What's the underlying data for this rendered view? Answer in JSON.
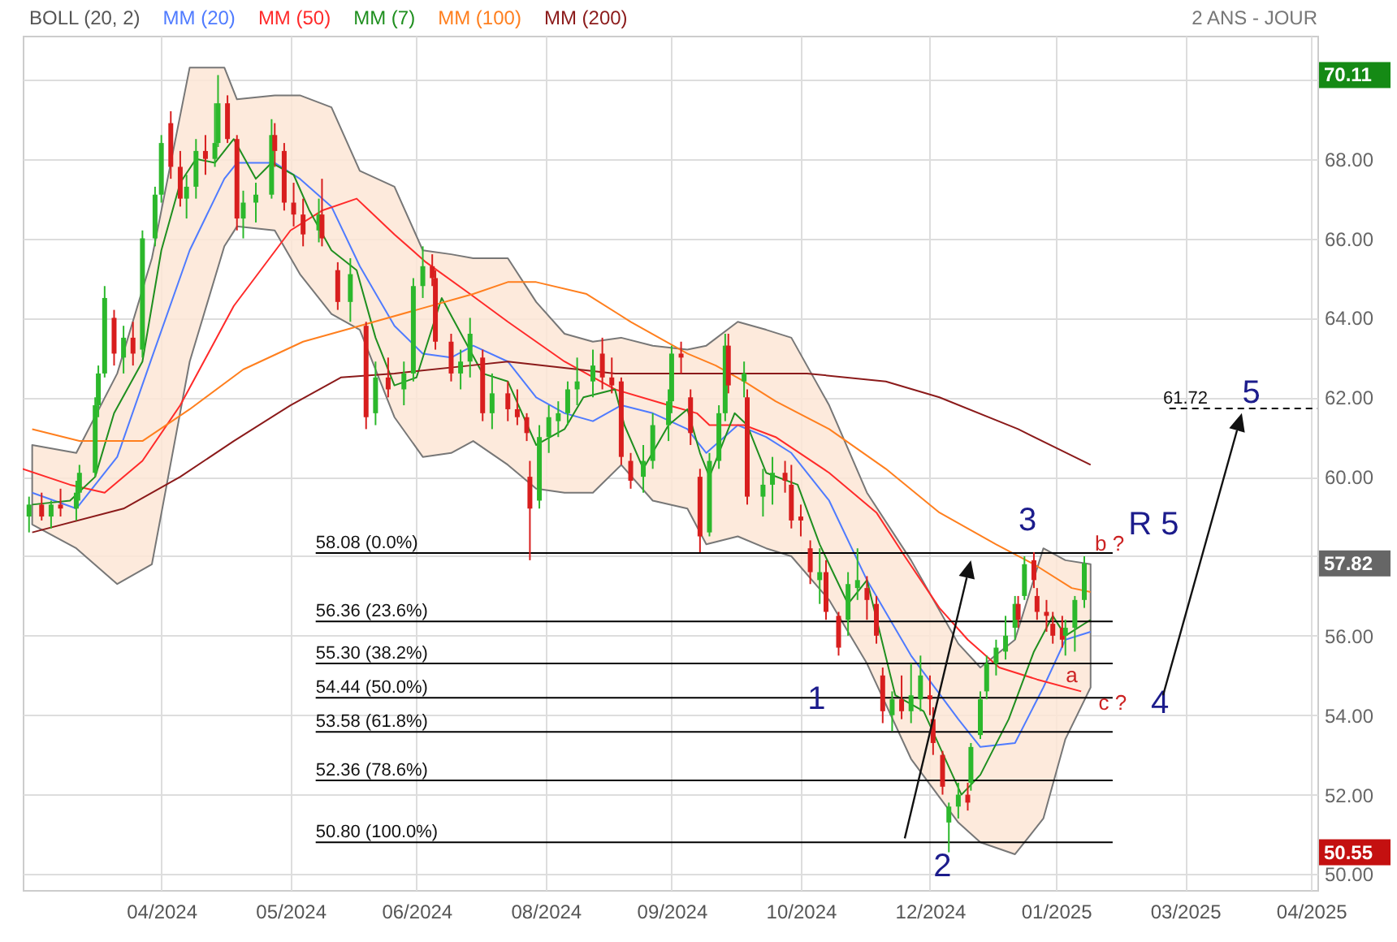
{
  "chart_data": {
    "type": "candlestick",
    "subtitle": "2 ANS - JOUR",
    "legend_title": "BOLL (20, 2)",
    "legend": "top left",
    "grid": true,
    "marker": "none",
    "xlim": [
      "2024-02-26",
      "2025-04-12"
    ],
    "xticks": [
      {
        "value": "2024-04-10",
        "label": "04/2024"
      },
      {
        "value": "2024-05-21",
        "label": "05/2024"
      },
      {
        "value": "2024-06-30",
        "label": "06/2024"
      },
      {
        "value": "2024-08-10",
        "label": "08/2024"
      },
      {
        "value": "2024-09-19",
        "label": "09/2024"
      },
      {
        "value": "2024-10-30",
        "label": "10/2024"
      },
      {
        "value": "2024-12-10",
        "label": "12/2024"
      },
      {
        "value": "2025-01-19",
        "label": "01/2025"
      },
      {
        "value": "2025-03-01",
        "label": "03/2025"
      },
      {
        "value": "2025-04-10",
        "label": "04/2025"
      }
    ],
    "ylim": [
      49.6,
      71.1
    ],
    "yticks": [
      {
        "value": 50,
        "label": "50.00"
      },
      {
        "value": 52,
        "label": "52.00"
      },
      {
        "value": 54,
        "label": "54.00"
      },
      {
        "value": 56,
        "label": "56.00"
      },
      {
        "value": 58,
        "label": null
      },
      {
        "value": 60,
        "label": "60.00"
      },
      {
        "value": 62,
        "label": "62.00"
      },
      {
        "value": 64,
        "label": "64.00"
      },
      {
        "value": 66,
        "label": "66.00"
      },
      {
        "value": 68,
        "label": "68.00"
      },
      {
        "value": 70,
        "label": null
      }
    ],
    "x": [
      "2024-02-28",
      "2024-03-03",
      "2024-03-06",
      "2024-03-09",
      "2024-03-14",
      "2024-03-15",
      "2024-03-20",
      "2024-03-21",
      "2024-03-23",
      "2024-03-26",
      "2024-03-29",
      "2024-04-01",
      "2024-04-04",
      "2024-04-08",
      "2024-04-10",
      "2024-04-13",
      "2024-04-16",
      "2024-04-18",
      "2024-04-21",
      "2024-04-24",
      "2024-04-27",
      "2024-04-28",
      "2024-05-01",
      "2024-05-04",
      "2024-05-06",
      "2024-05-10",
      "2024-05-15",
      "2024-05-16",
      "2024-05-19",
      "2024-05-22",
      "2024-05-25",
      "2024-05-30",
      "2024-05-31",
      "2024-06-05",
      "2024-06-09",
      "2024-06-14",
      "2024-06-17",
      "2024-06-21",
      "2024-06-26",
      "2024-06-29",
      "2024-07-02",
      "2024-07-05",
      "2024-07-06",
      "2024-07-11",
      "2024-07-14",
      "2024-07-17",
      "2024-07-21",
      "2024-07-24",
      "2024-07-29",
      "2024-08-01",
      "2024-08-04",
      "2024-08-05",
      "2024-08-08",
      "2024-08-11",
      "2024-08-14",
      "2024-08-17",
      "2024-08-20",
      "2024-08-25",
      "2024-08-28",
      "2024-08-31",
      "2024-09-03",
      "2024-09-06",
      "2024-09-10",
      "2024-09-13",
      "2024-09-18",
      "2024-09-19",
      "2024-09-22",
      "2024-09-25",
      "2024-09-28",
      "2024-10-01",
      "2024-10-04",
      "2024-10-06",
      "2024-10-07",
      "2024-10-12",
      "2024-10-13",
      "2024-10-18",
      "2024-10-21",
      "2024-10-25",
      "2024-10-27",
      "2024-10-30",
      "2024-11-02",
      "2024-11-05",
      "2024-11-07",
      "2024-11-11",
      "2024-11-14",
      "2024-11-17",
      "2024-11-20",
      "2024-11-23",
      "2024-11-25",
      "2024-11-28",
      "2024-12-01",
      "2024-12-04",
      "2024-12-07",
      "2024-12-10",
      "2024-12-11",
      "2024-12-14",
      "2024-12-16",
      "2024-12-19",
      "2024-12-22",
      "2024-12-23",
      "2024-12-26",
      "2024-12-28",
      "2024-12-31",
      "2025-01-03",
      "2025-01-06",
      "2025-01-07",
      "2025-01-09",
      "2025-01-12",
      "2025-01-13",
      "2025-01-16",
      "2025-01-18",
      "2025-01-21",
      "2025-01-22",
      "2025-01-25",
      "2025-01-28"
    ],
    "ohlc": [
      [
        59.0,
        59.5,
        58.6,
        59.3
      ],
      [
        59.3,
        59.6,
        58.9,
        59.0
      ],
      [
        59.0,
        59.4,
        58.7,
        59.3
      ],
      [
        59.3,
        59.7,
        59.0,
        59.2
      ],
      [
        59.2,
        59.9,
        58.9,
        59.6
      ],
      [
        59.6,
        60.3,
        59.4,
        60.1
      ],
      [
        60.1,
        62.0,
        60.0,
        61.8
      ],
      [
        61.8,
        62.8,
        61.5,
        62.6
      ],
      [
        62.6,
        64.8,
        62.5,
        64.5
      ],
      [
        64.0,
        64.2,
        62.8,
        63.1
      ],
      [
        63.0,
        63.8,
        62.6,
        63.5
      ],
      [
        63.5,
        63.9,
        62.8,
        63.1
      ],
      [
        63.2,
        66.2,
        63.0,
        66.0
      ],
      [
        66.0,
        67.3,
        65.8,
        67.1
      ],
      [
        67.1,
        68.6,
        66.9,
        68.4
      ],
      [
        68.9,
        69.2,
        67.5,
        67.8
      ],
      [
        67.8,
        68.2,
        66.8,
        67.0
      ],
      [
        67.0,
        67.6,
        66.5,
        67.3
      ],
      [
        67.3,
        68.5,
        67.0,
        68.2
      ],
      [
        68.2,
        68.6,
        67.6,
        68.0
      ],
      [
        68.0,
        69.4,
        67.8,
        68.4
      ],
      [
        68.4,
        70.11,
        68.3,
        69.4
      ],
      [
        69.4,
        69.6,
        68.4,
        68.5
      ],
      [
        68.5,
        68.6,
        66.2,
        66.5
      ],
      [
        66.5,
        67.2,
        66.0,
        66.9
      ],
      [
        66.9,
        67.4,
        66.4,
        67.1
      ],
      [
        67.1,
        69.0,
        67.0,
        68.6
      ],
      [
        68.6,
        68.9,
        67.8,
        68.2
      ],
      [
        68.2,
        68.4,
        66.7,
        66.9
      ],
      [
        66.9,
        67.4,
        66.3,
        66.6
      ],
      [
        66.6,
        67.0,
        65.8,
        66.1
      ],
      [
        66.2,
        67.0,
        65.9,
        66.6
      ],
      [
        66.6,
        67.5,
        65.8,
        66.0
      ],
      [
        65.2,
        65.4,
        64.2,
        64.4
      ],
      [
        64.4,
        65.5,
        63.9,
        65.1
      ],
      [
        63.8,
        63.9,
        61.2,
        61.5
      ],
      [
        61.6,
        62.9,
        61.3,
        62.5
      ],
      [
        62.5,
        63.0,
        62.0,
        62.2
      ],
      [
        62.2,
        62.9,
        61.8,
        62.6
      ],
      [
        62.6,
        65.0,
        62.4,
        64.8
      ],
      [
        64.8,
        65.8,
        64.5,
        65.3
      ],
      [
        65.3,
        65.6,
        64.8,
        65.0
      ],
      [
        65.0,
        65.2,
        63.2,
        63.4
      ],
      [
        63.4,
        63.6,
        62.4,
        62.6
      ],
      [
        62.6,
        63.2,
        62.2,
        62.9
      ],
      [
        62.9,
        64.0,
        62.5,
        63.6
      ],
      [
        63.0,
        63.2,
        61.4,
        61.6
      ],
      [
        61.6,
        62.6,
        61.2,
        62.1
      ],
      [
        62.1,
        62.4,
        61.4,
        61.7
      ],
      [
        61.7,
        62.2,
        61.3,
        61.5
      ],
      [
        61.5,
        61.6,
        60.9,
        61.1
      ],
      [
        60.0,
        60.4,
        57.9,
        59.2
      ],
      [
        59.4,
        61.3,
        59.2,
        61.0
      ],
      [
        61.0,
        61.8,
        60.6,
        61.5
      ],
      [
        61.4,
        61.9,
        61.0,
        61.6
      ],
      [
        61.6,
        62.4,
        61.3,
        62.2
      ],
      [
        62.2,
        63.0,
        61.8,
        62.4
      ],
      [
        62.4,
        63.2,
        62.0,
        62.8
      ],
      [
        63.1,
        63.5,
        62.2,
        62.5
      ],
      [
        62.5,
        63.0,
        62.1,
        62.3
      ],
      [
        62.4,
        62.5,
        60.3,
        60.5
      ],
      [
        60.4,
        60.6,
        59.7,
        59.9
      ],
      [
        60.0,
        60.8,
        59.6,
        60.4
      ],
      [
        60.4,
        61.6,
        60.2,
        61.3
      ],
      [
        61.3,
        62.2,
        60.9,
        61.9
      ],
      [
        61.9,
        63.3,
        61.6,
        63.1
      ],
      [
        63.1,
        63.4,
        62.6,
        63.0
      ],
      [
        62.0,
        62.2,
        60.8,
        61.1
      ],
      [
        60.0,
        60.2,
        58.1,
        58.5
      ],
      [
        58.6,
        60.6,
        58.5,
        60.4
      ],
      [
        60.4,
        61.8,
        60.2,
        61.6
      ],
      [
        61.6,
        63.6,
        61.4,
        63.3
      ],
      [
        63.3,
        63.6,
        62.1,
        62.3
      ],
      [
        62.4,
        62.9,
        62.0,
        62.6
      ],
      [
        62.0,
        62.2,
        59.3,
        59.5
      ],
      [
        59.5,
        60.2,
        59.0,
        59.8
      ],
      [
        59.8,
        60.5,
        59.3,
        60.1
      ],
      [
        60.1,
        60.4,
        59.6,
        59.9
      ],
      [
        59.8,
        60.3,
        58.7,
        58.9
      ],
      [
        59.0,
        59.3,
        58.5,
        58.9
      ],
      [
        58.2,
        58.4,
        57.3,
        57.6
      ],
      [
        57.4,
        58.2,
        56.8,
        57.6
      ],
      [
        57.6,
        57.9,
        56.4,
        56.6
      ],
      [
        56.5,
        56.6,
        55.5,
        55.7
      ],
      [
        56.4,
        57.6,
        56.0,
        57.3
      ],
      [
        57.2,
        58.2,
        56.9,
        57.4
      ],
      [
        57.2,
        57.5,
        56.4,
        56.9
      ],
      [
        56.8,
        57.0,
        55.8,
        56.0
      ],
      [
        55.0,
        55.2,
        53.8,
        54.1
      ],
      [
        54.0,
        54.6,
        53.6,
        54.4
      ],
      [
        54.4,
        55.0,
        53.9,
        54.1
      ],
      [
        54.1,
        55.3,
        53.8,
        54.5
      ],
      [
        54.4,
        55.5,
        54.1,
        55.0
      ],
      [
        54.5,
        55.0,
        54.0,
        54.4
      ],
      [
        53.9,
        54.2,
        53.0,
        53.3
      ],
      [
        53.0,
        53.1,
        52.0,
        52.2
      ],
      [
        51.3,
        51.8,
        50.55,
        51.7
      ],
      [
        51.7,
        52.3,
        51.4,
        52.0
      ],
      [
        52.0,
        52.3,
        51.6,
        51.8
      ],
      [
        52.3,
        53.3,
        52.1,
        53.2
      ],
      [
        53.5,
        54.6,
        53.4,
        54.4
      ],
      [
        54.6,
        55.5,
        54.4,
        55.3
      ],
      [
        55.3,
        55.9,
        55.0,
        55.7
      ],
      [
        55.6,
        56.5,
        55.4,
        56.0
      ],
      [
        56.2,
        57.0,
        55.9,
        56.8
      ],
      [
        56.8,
        57.0,
        56.2,
        56.4
      ],
      [
        57.0,
        58.0,
        56.9,
        57.8
      ],
      [
        57.9,
        58.1,
        57.2,
        57.4
      ],
      [
        57.0,
        57.2,
        56.4,
        56.6
      ],
      [
        56.6,
        56.9,
        56.1,
        56.5
      ],
      [
        56.3,
        56.6,
        55.8,
        56.0
      ],
      [
        56.2,
        56.5,
        55.7,
        55.9
      ],
      [
        56.0,
        56.4,
        55.5,
        56.2
      ],
      [
        56.2,
        57.0,
        55.6,
        56.9
      ],
      [
        56.9,
        58.0,
        56.7,
        57.82
      ]
    ],
    "series": [
      {
        "name": "MM (20)",
        "type": "line",
        "color": "#4f7bff",
        "x": [
          "2024-02-29",
          "2024-03-14",
          "2024-03-27",
          "2024-04-07",
          "2024-04-19",
          "2024-04-30",
          "2024-05-04",
          "2024-05-16",
          "2024-05-24",
          "2024-06-03",
          "2024-06-12",
          "2024-06-23",
          "2024-07-02",
          "2024-07-11",
          "2024-07-18",
          "2024-07-29",
          "2024-08-07",
          "2024-08-16",
          "2024-08-25",
          "2024-09-03",
          "2024-09-13",
          "2024-09-24",
          "2024-09-30",
          "2024-10-10",
          "2024-10-19",
          "2024-10-27",
          "2024-11-08",
          "2024-11-20",
          "2024-12-04",
          "2024-12-19",
          "2024-12-26",
          "2025-01-06",
          "2025-01-15",
          "2025-01-22",
          "2025-01-30"
        ],
        "values": [
          59.6,
          59.2,
          60.5,
          63.0,
          65.7,
          67.5,
          67.9,
          67.9,
          67.5,
          66.8,
          65.3,
          63.8,
          63.1,
          63.0,
          63.3,
          62.9,
          62.0,
          61.6,
          61.4,
          61.8,
          61.6,
          61.2,
          60.6,
          61.3,
          61.0,
          60.6,
          59.4,
          57.4,
          55.5,
          53.9,
          53.2,
          53.3,
          54.7,
          55.9,
          56.1
        ],
        "upper": [
          60.8,
          60.6,
          62.6,
          65.5,
          70.3,
          70.3,
          69.5,
          69.6,
          69.6,
          69.3,
          67.7,
          67.3,
          65.7,
          65.6,
          65.5,
          65.5,
          64.4,
          63.6,
          63.4,
          63.5,
          63.3,
          63.2,
          63.3,
          63.9,
          63.7,
          63.5,
          61.8,
          59.6,
          57.9,
          55.8,
          55.2,
          55.9,
          58.2,
          57.9,
          57.8
        ],
        "lower": [
          58.8,
          58.2,
          57.3,
          57.8,
          62.9,
          65.8,
          66.3,
          66.2,
          65.1,
          64.1,
          63.7,
          61.5,
          60.5,
          60.6,
          60.9,
          60.3,
          59.7,
          59.6,
          59.6,
          60.3,
          59.4,
          59.2,
          58.3,
          58.5,
          58.2,
          58.0,
          56.9,
          55.3,
          52.9,
          51.3,
          50.8,
          50.5,
          51.4,
          53.4,
          54.7
        ]
      },
      {
        "name": "MM (50)",
        "type": "line",
        "color": "#ff2a2a",
        "x": [
          "2024-02-26",
          "2024-03-12",
          "2024-03-23",
          "2024-04-04",
          "2024-04-16",
          "2024-05-03",
          "2024-05-21",
          "2024-05-31",
          "2024-06-11",
          "2024-06-23",
          "2024-07-03",
          "2024-07-17",
          "2024-07-29",
          "2024-08-16",
          "2024-09-01",
          "2024-09-18",
          "2024-09-27",
          "2024-10-01",
          "2024-10-12",
          "2024-10-22",
          "2024-11-08",
          "2024-11-23",
          "2024-12-02",
          "2024-12-13",
          "2024-12-22",
          "2025-01-01",
          "2025-01-13",
          "2025-01-27"
        ],
        "values": [
          60.2,
          59.8,
          59.6,
          60.4,
          61.8,
          64.3,
          66.2,
          66.7,
          67.0,
          66.1,
          65.4,
          64.6,
          63.9,
          62.9,
          62.2,
          61.8,
          61.6,
          61.3,
          61.3,
          61.0,
          60.1,
          59.1,
          58.0,
          56.7,
          55.9,
          55.2,
          54.9,
          54.6
        ]
      },
      {
        "name": "MM (7)",
        "type": "line",
        "color": "#1f8f1f",
        "x": [
          "2024-02-29",
          "2024-03-12",
          "2024-03-20",
          "2024-03-26",
          "2024-04-04",
          "2024-04-10",
          "2024-04-16",
          "2024-04-21",
          "2024-04-27",
          "2024-05-03",
          "2024-05-10",
          "2024-05-15",
          "2024-05-22",
          "2024-05-27",
          "2024-06-03",
          "2024-06-11",
          "2024-06-17",
          "2024-06-23",
          "2024-06-30",
          "2024-07-08",
          "2024-07-21",
          "2024-07-29",
          "2024-08-07",
          "2024-08-16",
          "2024-08-22",
          "2024-09-01",
          "2024-09-04",
          "2024-09-10",
          "2024-09-18",
          "2024-09-24",
          "2024-09-28",
          "2024-10-01",
          "2024-10-09",
          "2024-10-13",
          "2024-10-19",
          "2024-10-29",
          "2024-11-05",
          "2024-11-14",
          "2024-11-20",
          "2024-11-29",
          "2024-12-08",
          "2024-12-20",
          "2024-12-26",
          "2025-01-04",
          "2025-01-12",
          "2025-01-18",
          "2025-01-22",
          "2025-01-30"
        ],
        "values": [
          59.3,
          59.4,
          60.0,
          61.6,
          62.9,
          65.7,
          67.4,
          68.0,
          67.9,
          68.5,
          67.5,
          67.9,
          67.6,
          66.7,
          65.7,
          65.2,
          63.5,
          62.3,
          62.5,
          64.5,
          62.6,
          62.4,
          60.8,
          61.2,
          62.0,
          62.2,
          61.3,
          60.2,
          61.3,
          61.7,
          60.6,
          60.0,
          61.6,
          61.3,
          60.1,
          59.8,
          58.3,
          56.8,
          57.4,
          54.5,
          54.1,
          52.0,
          52.5,
          53.9,
          55.6,
          56.5,
          56.0,
          56.4
        ]
      },
      {
        "name": "MM (100)",
        "type": "line",
        "color": "#ff7f1e",
        "x": [
          "2024-02-29",
          "2024-03-15",
          "2024-04-04",
          "2024-04-19",
          "2024-05-06",
          "2024-05-25",
          "2024-06-12",
          "2024-06-30",
          "2024-07-18",
          "2024-07-29",
          "2024-08-07",
          "2024-08-23",
          "2024-09-06",
          "2024-09-24",
          "2024-10-03",
          "2024-10-12",
          "2024-10-22",
          "2024-11-08",
          "2024-11-26",
          "2024-12-13",
          "2024-12-31",
          "2025-01-12",
          "2025-01-24",
          "2025-01-30"
        ],
        "values": [
          61.2,
          60.9,
          60.9,
          61.7,
          62.7,
          63.4,
          63.8,
          64.2,
          64.6,
          64.9,
          64.9,
          64.6,
          63.9,
          63.1,
          62.8,
          62.4,
          61.9,
          61.2,
          60.2,
          59.1,
          58.3,
          57.8,
          57.2,
          57.1
        ]
      },
      {
        "name": "MM (200)",
        "type": "line",
        "color": "#8b1a1a",
        "x": [
          "2024-02-29",
          "2024-03-29",
          "2024-04-16",
          "2024-05-03",
          "2024-05-21",
          "2024-06-06",
          "2024-06-23",
          "2024-07-17",
          "2024-07-29",
          "2024-09-01",
          "2024-10-06",
          "2024-11-01",
          "2024-11-26",
          "2024-12-13",
          "2025-01-07",
          "2025-01-30"
        ],
        "values": [
          58.6,
          59.2,
          60.0,
          60.9,
          61.8,
          62.5,
          62.6,
          62.8,
          62.9,
          62.6,
          62.6,
          62.6,
          62.4,
          62.0,
          61.2,
          60.3
        ]
      },
      {
        "type": "line",
        "color": "#000000",
        "x": [
          "2024-05-29",
          "2025-02-06"
        ],
        "values": [
          58.08,
          58.08
        ]
      },
      {
        "type": "line",
        "color": "#000000",
        "x": [
          "2024-05-29",
          "2025-02-06"
        ],
        "values": [
          56.36,
          56.36
        ]
      },
      {
        "type": "line",
        "color": "#000000",
        "x": [
          "2024-05-29",
          "2025-02-06"
        ],
        "values": [
          55.3,
          55.3
        ]
      },
      {
        "type": "line",
        "color": "#000000",
        "x": [
          "2024-05-29",
          "2025-02-06"
        ],
        "values": [
          54.44,
          54.44
        ]
      },
      {
        "type": "line",
        "color": "#000000",
        "x": [
          "2024-05-29",
          "2025-02-06"
        ],
        "values": [
          53.58,
          53.58
        ]
      },
      {
        "type": "line",
        "color": "#000000",
        "x": [
          "2024-05-29",
          "2025-02-06"
        ],
        "values": [
          52.36,
          52.36
        ]
      },
      {
        "type": "line",
        "color": "#000000",
        "x": [
          "2024-05-29",
          "2025-02-06"
        ],
        "values": [
          50.8,
          50.8
        ]
      },
      {
        "type": "line",
        "color": "#000000",
        "line_style": "dashed",
        "x": [
          "2025-02-24",
          "2025-04-12"
        ],
        "values": [
          61.72,
          61.72
        ]
      }
    ],
    "annotations": [
      {
        "text": "58.08  (0.0%)",
        "x": "2024-05-29",
        "y": 58.08
      },
      {
        "text": "56.36  (23.6%)",
        "x": "2024-05-29",
        "y": 56.36
      },
      {
        "text": "55.30  (38.2%)",
        "x": "2024-05-29",
        "y": 55.3
      },
      {
        "text": "54.44  (50.0%)",
        "x": "2024-05-29",
        "y": 54.44
      },
      {
        "text": "53.58  (61.8%)",
        "x": "2024-05-29",
        "y": 53.58
      },
      {
        "text": "52.36  (78.6%)",
        "x": "2024-05-29",
        "y": 52.36
      },
      {
        "text": "50.80  (100.0%)",
        "x": "2024-05-29",
        "y": 50.8
      },
      {
        "text": "61.72",
        "x": "2025-02-22",
        "y": 61.72
      },
      "1",
      "2",
      "3",
      "4",
      "5",
      "R 5",
      "a",
      "b ?",
      "c ?",
      "70.11",
      "57.82",
      "50.55"
    ]
  }
}
